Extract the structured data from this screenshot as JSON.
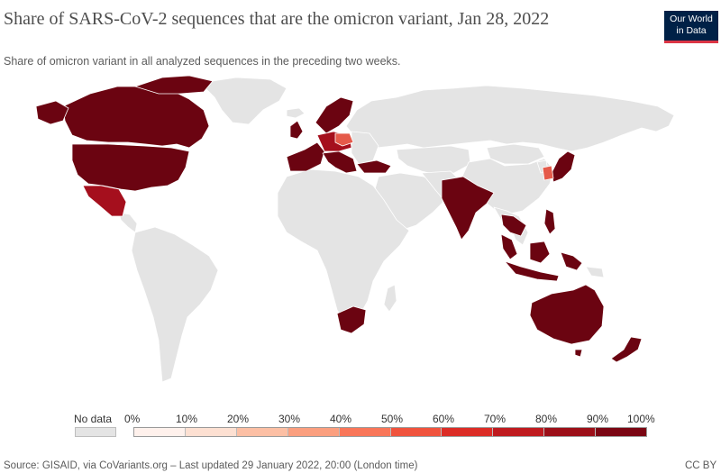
{
  "title": "Share of SARS-CoV-2 sequences that are the omicron variant, Jan 28, 2022",
  "subtitle": "Share of omicron variant in all analyzed sequences in the preceding two weeks.",
  "logo": {
    "line1": "Our World",
    "line2": "in Data"
  },
  "legend": {
    "no_data_label": "No data",
    "ticks": [
      "0%",
      "10%",
      "20%",
      "30%",
      "40%",
      "50%",
      "60%",
      "70%",
      "80%",
      "90%",
      "100%"
    ],
    "colors": [
      "#fff1ec",
      "#fde0d2",
      "#fcbfa4",
      "#fb9f7f",
      "#f97659",
      "#f0533d",
      "#dc2c26",
      "#bf1a1f",
      "#9c0f18",
      "#7b0613",
      "#5e020f"
    ]
  },
  "colors": {
    "no_data": "#e4e4e4",
    "high": "#6b0411",
    "mid": "#a50f1d",
    "light": "#e55a4a",
    "border": "#ffffff"
  },
  "footer": {
    "source": "Source: GISAID, via CoVariants.org – Last updated 29 January 2022, 20:00 (London time)",
    "license": "CC BY"
  }
}
